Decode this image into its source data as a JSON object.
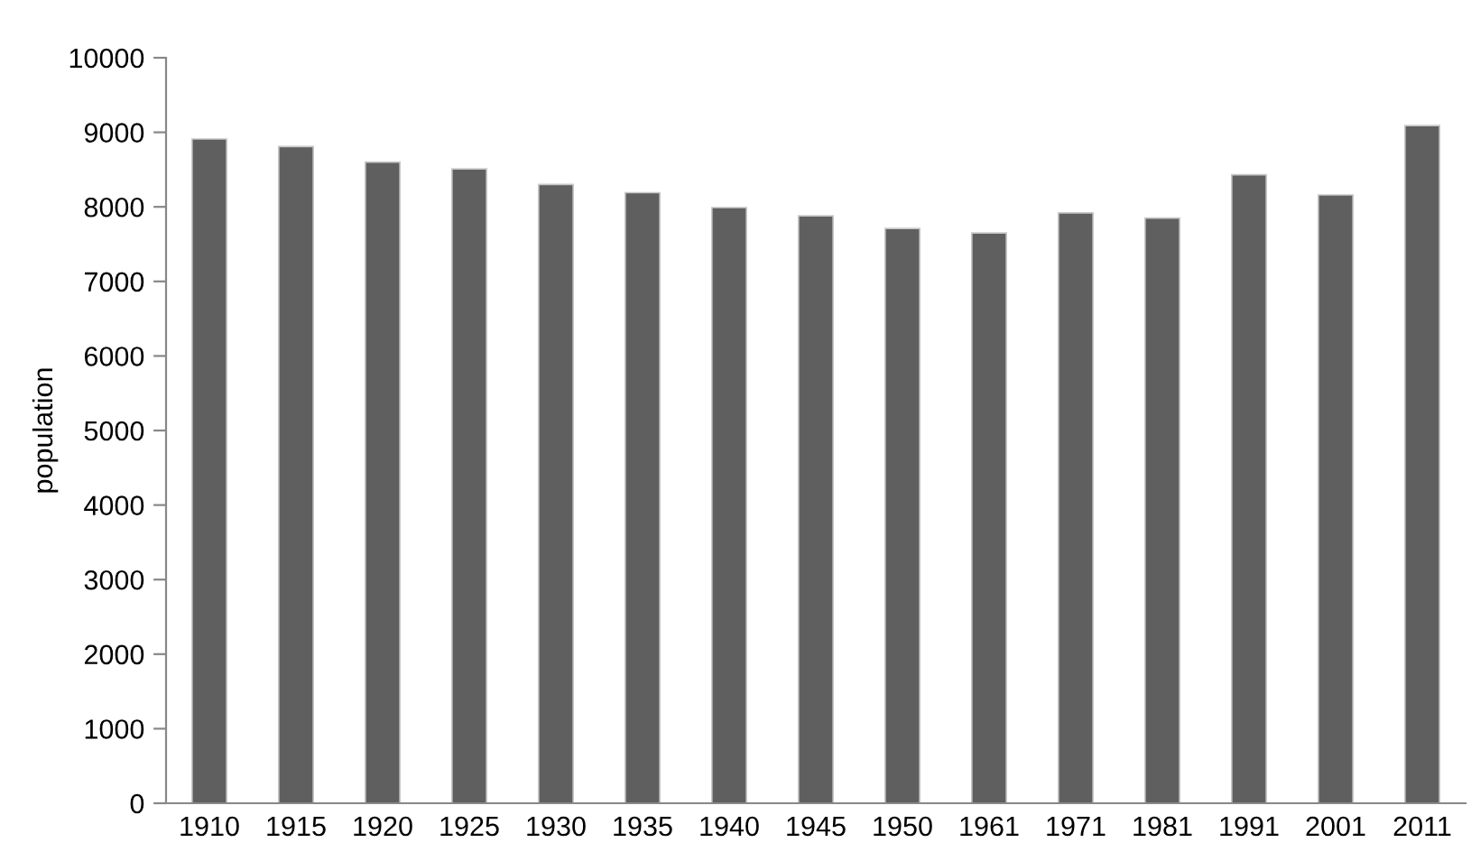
{
  "chart_data": {
    "type": "bar",
    "ylabel": "population",
    "categories": [
      "1910",
      "1915",
      "1920",
      "1925",
      "1930",
      "1935",
      "1940",
      "1945",
      "1950",
      "1961",
      "1971",
      "1981",
      "1991",
      "2001",
      "2011"
    ],
    "values": [
      8910,
      8810,
      8600,
      8510,
      8300,
      8190,
      7990,
      7880,
      7710,
      7650,
      7920,
      7850,
      8430,
      8160,
      9090
    ],
    "color": "#5f5f60",
    "ylim": [
      0,
      10000
    ],
    "yticks": [
      0,
      1000,
      2000,
      3000,
      4000,
      5000,
      6000,
      7000,
      8000,
      9000,
      10000
    ],
    "grid": false,
    "legend": false
  }
}
